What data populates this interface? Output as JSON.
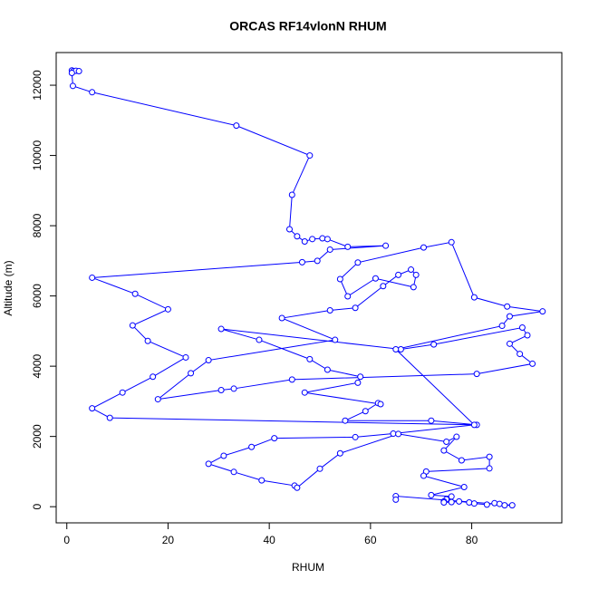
{
  "chart_data": {
    "type": "line",
    "title": "ORCAS RF14vlonN RHUM",
    "x_label": "RHUM",
    "y_label": "Altitude (m)",
    "color": "#0000ff",
    "marker": "open-circle",
    "xlim": [
      -2.1,
      97.8
    ],
    "ylim": [
      -460,
      12930
    ],
    "xticks": [
      0,
      20,
      40,
      60,
      80
    ],
    "yticks": [
      0,
      2000,
      4000,
      6000,
      8000,
      10000,
      12000
    ],
    "series": [
      {
        "name": "RHUM",
        "x": [
          1,
          1.3,
          1.8,
          2.4,
          1,
          1.2,
          5,
          33.5,
          48,
          44.5,
          44,
          45.5,
          47,
          48.5,
          50.5,
          51.5,
          55.5,
          63,
          52,
          49.5,
          46.5,
          5,
          13.5,
          20,
          13,
          16,
          23.5,
          17,
          11,
          5,
          8.5,
          81,
          72,
          55,
          59,
          61.5,
          62,
          47,
          57.5,
          58,
          51.5,
          48,
          38,
          30.5,
          66,
          72.5,
          90,
          91,
          87.5,
          89.5,
          92,
          81,
          44.5,
          33,
          30.5,
          18,
          24.5,
          28,
          53,
          42.5,
          52,
          57,
          62.5,
          65.5,
          68,
          69,
          68.5,
          61,
          55.5,
          54,
          57.5,
          70.5,
          76,
          80.5,
          87,
          94,
          87.5,
          86,
          65,
          80.5,
          64.5,
          57,
          41,
          36.5,
          31,
          28,
          33,
          38.5,
          45,
          45.5,
          50,
          54,
          65.5,
          75,
          77,
          74.5,
          78,
          83.5,
          83.5,
          71,
          70.5,
          78.5,
          72,
          76,
          75,
          74.5,
          74.5,
          76,
          77.5,
          79.5,
          80.5,
          83,
          84.5,
          85.5,
          86.5,
          88,
          65,
          65
        ],
        "values": [
          12420,
          12400,
          12410,
          12400,
          12350,
          11980,
          11800,
          10850,
          10000,
          8880,
          7900,
          7700,
          7550,
          7620,
          7640,
          7620,
          7400,
          7430,
          7320,
          7000,
          6960,
          6520,
          6060,
          5620,
          5160,
          4720,
          4250,
          3700,
          3250,
          2800,
          2530,
          2330,
          2450,
          2450,
          2720,
          2950,
          2920,
          3250,
          3530,
          3700,
          3900,
          4200,
          4750,
          5060,
          4480,
          4620,
          5100,
          4880,
          4640,
          4350,
          4070,
          3780,
          3620,
          3360,
          3320,
          3060,
          3800,
          4170,
          4750,
          5370,
          5590,
          5660,
          6280,
          6600,
          6750,
          6600,
          6250,
          6500,
          5990,
          6480,
          6950,
          7380,
          7530,
          5960,
          5700,
          5560,
          5420,
          5150,
          4480,
          2330,
          2080,
          1980,
          1950,
          1700,
          1450,
          1220,
          990,
          750,
          600,
          540,
          1080,
          1520,
          2070,
          1850,
          1990,
          1600,
          1320,
          1420,
          1090,
          1000,
          880,
          560,
          330,
          290,
          210,
          150,
          120,
          130,
          150,
          120,
          90,
          60,
          100,
          80,
          40,
          40,
          300,
          200
        ]
      }
    ]
  }
}
